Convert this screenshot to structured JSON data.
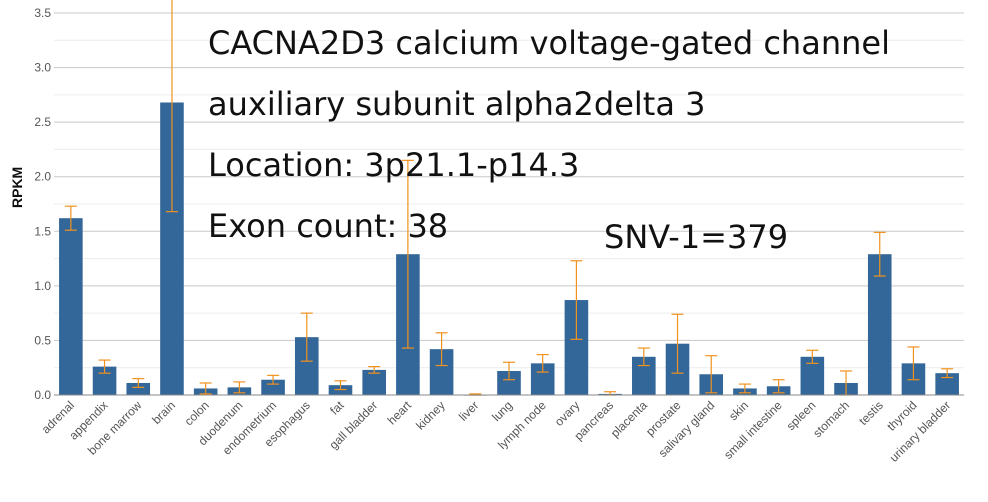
{
  "chart_data": {
    "type": "bar",
    "ylabel": "RPKM",
    "ylim": [
      0,
      3.5
    ],
    "yticks": [
      "0.0",
      "0.5",
      "1.0",
      "1.5",
      "2.0",
      "2.5",
      "3.0",
      "3.5"
    ],
    "grid": true,
    "bar_color": "#336699",
    "error_color": "#f0921e",
    "categories": [
      "adrenal",
      "appendix",
      "bone marrow",
      "brain",
      "colon",
      "duodenum",
      "endometrium",
      "esophagus",
      "fat",
      "gall bladder",
      "heart",
      "kidney",
      "liver",
      "lung",
      "lymph node",
      "ovary",
      "pancreas",
      "placenta",
      "prostate",
      "salivary gland",
      "skin",
      "small intestine",
      "spleen",
      "stomach",
      "testis",
      "thyroid",
      "urinary bladder"
    ],
    "values": [
      1.62,
      0.26,
      0.11,
      2.68,
      0.06,
      0.07,
      0.14,
      0.53,
      0.09,
      0.23,
      1.29,
      0.42,
      0.0,
      0.22,
      0.29,
      0.87,
      0.01,
      0.35,
      0.47,
      0.19,
      0.06,
      0.08,
      0.35,
      0.11,
      1.29,
      0.29,
      0.2
    ],
    "errors": [
      0.11,
      0.06,
      0.04,
      1.0,
      0.05,
      0.05,
      0.04,
      0.22,
      0.04,
      0.03,
      0.86,
      0.15,
      0.01,
      0.08,
      0.08,
      0.36,
      0.02,
      0.08,
      0.27,
      0.17,
      0.04,
      0.06,
      0.06,
      0.11,
      0.2,
      0.15,
      0.04
    ],
    "annotations": {
      "line1": "CACNA2D3 calcium voltage-gated channel",
      "line2": "auxiliary subunit alpha2delta 3",
      "line3": "Location: 3p21.1-p14.3",
      "line4": "Exon count: 38",
      "snv": "SNV-1=379"
    }
  }
}
